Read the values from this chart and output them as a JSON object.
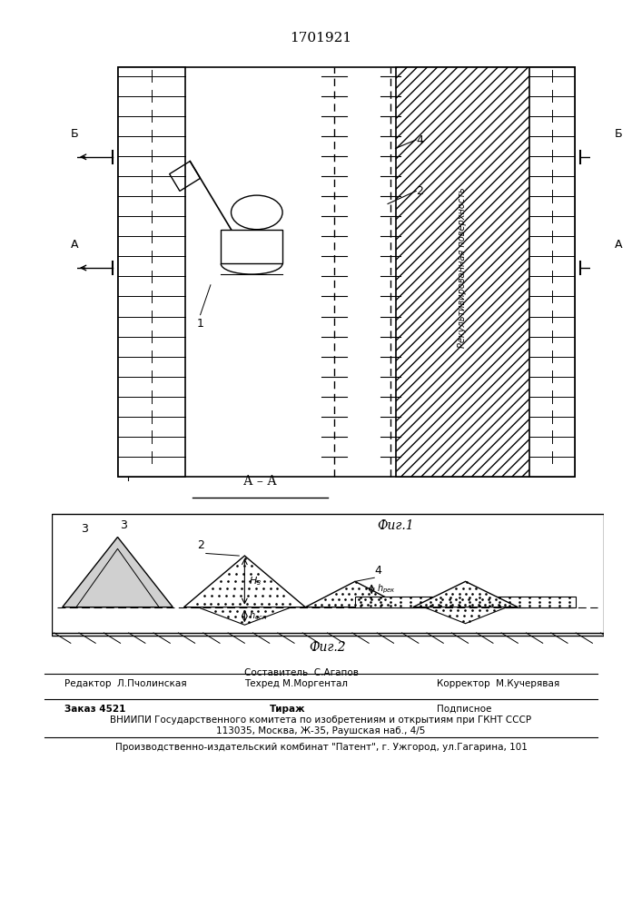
{
  "title": "1701921",
  "fig1_label": "Фиг.1",
  "fig2_label": "Фиг.2",
  "section_label": "А – А",
  "bg_color": "#ffffff",
  "line_color": "#000000",
  "hatch_color": "#000000",
  "fig1": {
    "recult_text": "Рекультивированная поверхность",
    "label_1": "1",
    "label_2": "2",
    "label_3": "3",
    "label_4": "4"
  },
  "footer": {
    "editor": "Редактор  Л.Пчолинская",
    "composer": "Составитель  С.Агапов",
    "techred": "Техред М.Моргентал",
    "corrector": "Корректор  М.Кучерявая",
    "order": "Заказ 4521",
    "tirage": "Тираж",
    "podpisnoe": "Подписное",
    "vnipi_line1": "ВНИИПИ Государственного комитета по изобретениям и открытиям при ГКНТ СССР",
    "vnipi_line2": "113035, Москва, Ж-35, Раушская наб., 4/5",
    "proizv": "Производственно-издательский комбинат \"Патент\", г. Ужгород, ул.Гагарина, 101"
  }
}
